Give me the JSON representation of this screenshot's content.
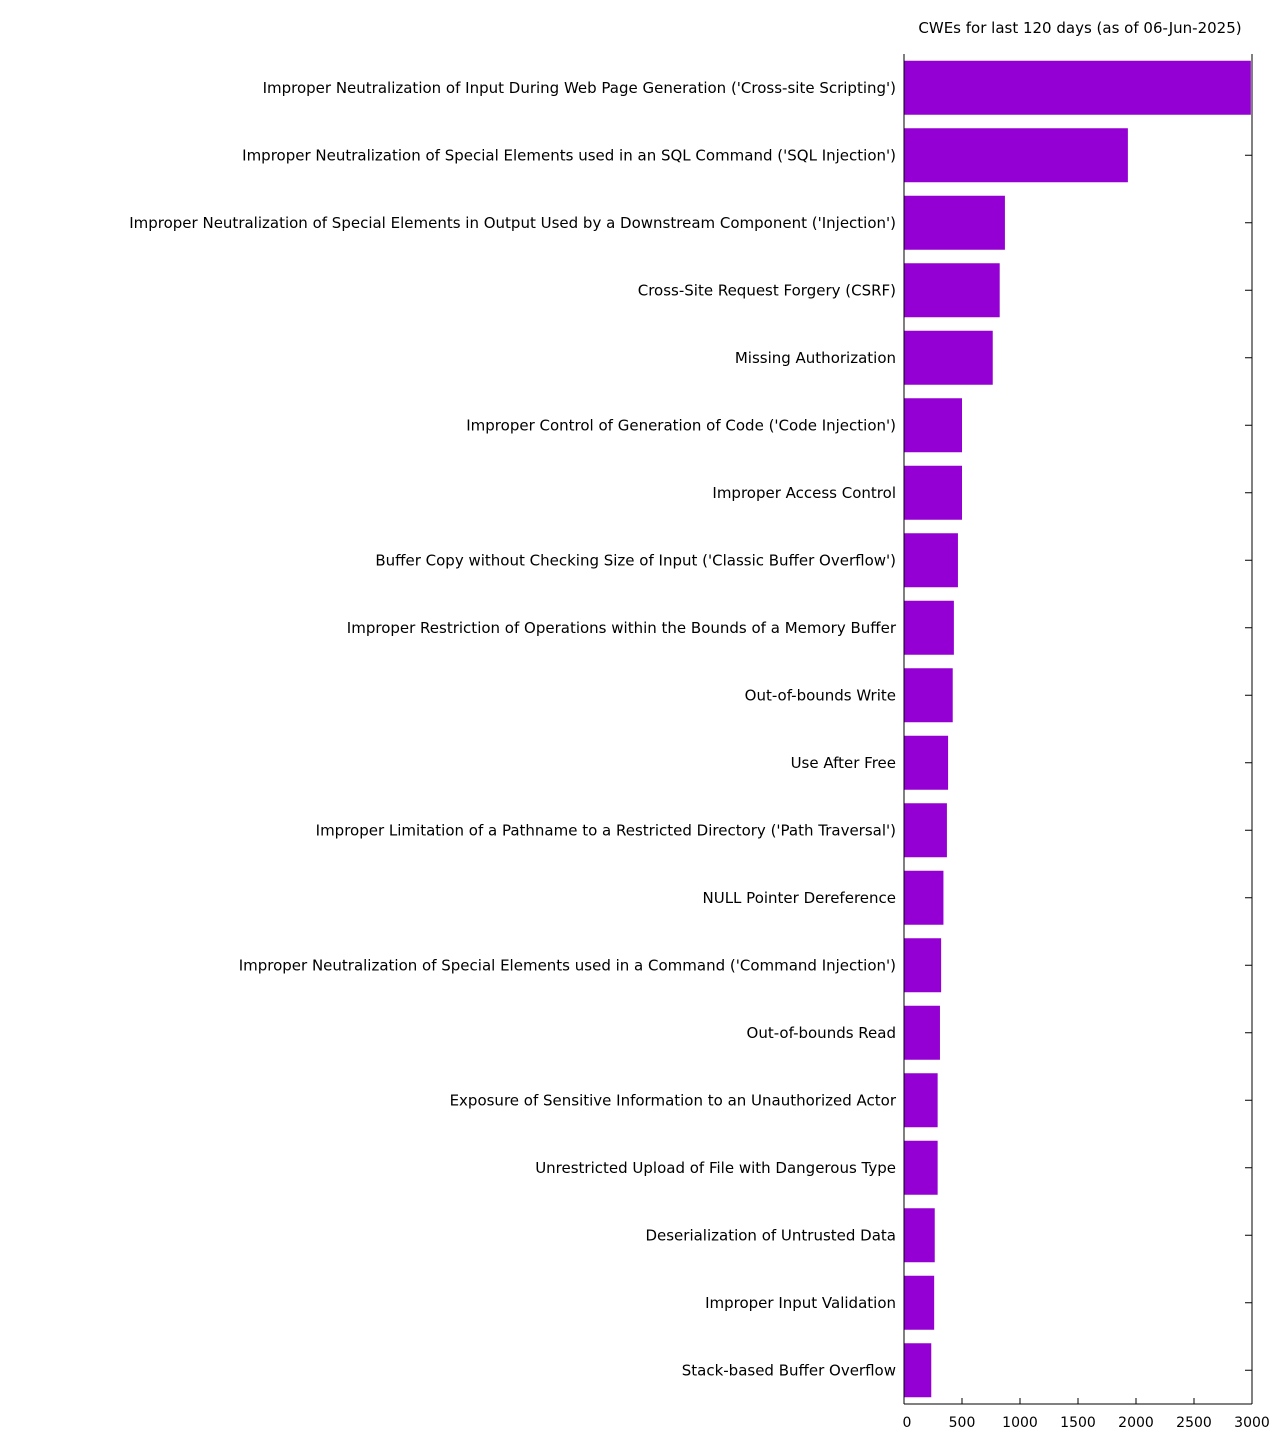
{
  "chart_data": {
    "type": "bar",
    "orientation": "horizontal",
    "title": "CWEs for last 120 days (as of 06-Jun-2025)",
    "xlabel": "",
    "ylabel": "",
    "xlim": [
      0,
      3000
    ],
    "x_ticks": [
      0,
      500,
      1000,
      1500,
      2000,
      2500,
      3000
    ],
    "grid": false,
    "legend": "none",
    "bar_color": "#9400D3",
    "categories": [
      "Improper Neutralization of Input During Web Page Generation ('Cross-site Scripting')",
      "Improper Neutralization of Special Elements used in an SQL Command ('SQL Injection')",
      "Improper Neutralization of Special Elements in Output Used by a Downstream Component ('Injection')",
      "Cross-Site Request Forgery (CSRF)",
      "Missing Authorization",
      "Improper Control of Generation of Code ('Code Injection')",
      "Improper Access Control",
      "Buffer Copy without Checking Size of Input ('Classic Buffer Overflow')",
      "Improper Restriction of Operations within the Bounds of a Memory Buffer",
      "Out-of-bounds Write",
      "Use After Free",
      "Improper Limitation of a Pathname to a Restricted Directory ('Path Traversal')",
      "NULL Pointer Dereference",
      "Improper Neutralization of Special Elements used in a Command ('Command Injection')",
      "Out-of-bounds Read",
      "Exposure of Sensitive Information to an Unauthorized Actor",
      "Unrestricted Upload of File with Dangerous Type",
      "Deserialization of Untrusted Data",
      "Improper Input Validation",
      "Stack-based Buffer Overflow"
    ],
    "values": [
      2990,
      1930,
      870,
      825,
      765,
      500,
      500,
      465,
      430,
      420,
      380,
      370,
      340,
      320,
      310,
      290,
      290,
      265,
      260,
      235
    ]
  }
}
